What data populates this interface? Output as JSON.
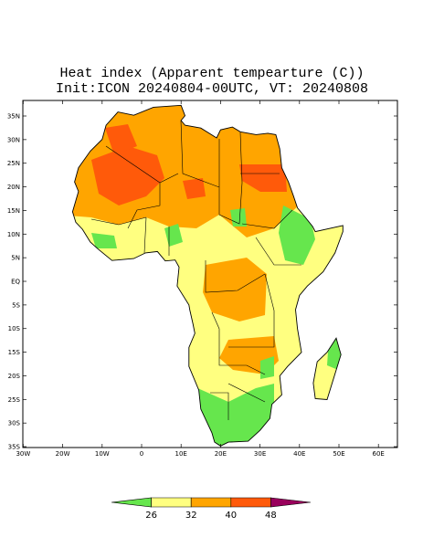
{
  "title": [
    "Heat index (Apparent tempearture (C))",
    "Init:ICON 20240804-00UTC, VT: 20240808"
  ],
  "lat_labels": [
    "35N",
    "30N",
    "25N",
    "20N",
    "15N",
    "10N",
    "5N",
    "EQ",
    "5S",
    "10S",
    "15S",
    "20S",
    "25S",
    "30S",
    "35S"
  ],
  "lon_labels": [
    "30W",
    "20W",
    "10W",
    "0",
    "10E",
    "20E",
    "30E",
    "40E",
    "50E",
    "60E"
  ],
  "colorbar": {
    "labels": [
      26,
      32,
      40,
      48
    ],
    "colors": [
      "#66e64d",
      "#ffff80",
      "#ffa500",
      "#ff5a0a",
      "#99005c"
    ]
  }
}
